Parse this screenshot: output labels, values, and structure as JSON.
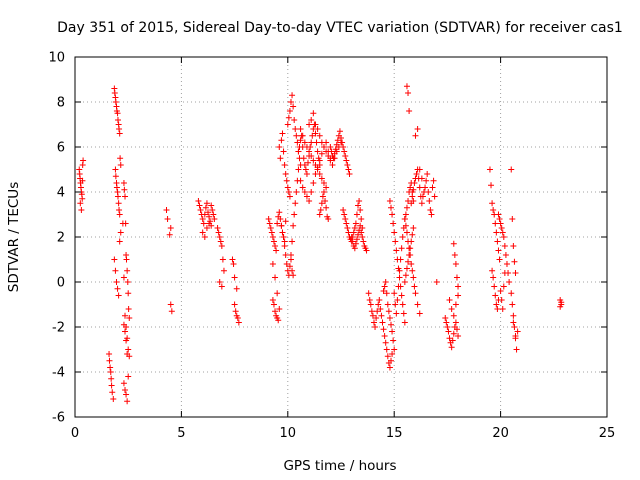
{
  "chart_data": {
    "type": "scatter",
    "title": "Day 351 of 2015, Sidereal Day-to-day VTEC variation (SDTVAR) for receiver cas1",
    "xlabel": "GPS time / hours",
    "ylabel": "SDTVAR / TECUs",
    "xlim": [
      0,
      25
    ],
    "ylim": [
      -6,
      10
    ],
    "xticks": [
      0,
      5,
      10,
      15,
      20,
      25
    ],
    "yticks": [
      -6,
      -4,
      -2,
      0,
      2,
      4,
      6,
      8,
      10
    ],
    "grid": true,
    "marker": "+",
    "color": "#ff0000",
    "series": [
      {
        "name": "SDTVAR",
        "x": [
          0.2,
          0.22,
          0.24,
          0.26,
          0.28,
          0.3,
          0.32,
          0.34,
          0.36,
          0.38,
          0.25,
          0.3,
          0.35,
          1.6,
          1.62,
          1.65,
          1.68,
          1.7,
          1.72,
          1.75,
          1.8,
          1.85,
          1.87,
          1.9,
          1.92,
          1.95,
          1.97,
          2.0,
          2.02,
          2.05,
          2.07,
          2.1,
          2.12,
          2.15,
          1.9,
          1.92,
          1.95,
          1.97,
          2.0,
          2.02,
          2.05,
          2.07,
          2.1,
          1.85,
          1.9,
          1.95,
          2.0,
          2.05,
          2.1,
          2.15,
          2.3,
          2.32,
          2.35,
          2.38,
          2.4,
          2.42,
          2.45,
          2.48,
          2.5,
          2.52,
          2.55,
          2.3,
          2.35,
          2.4,
          2.45,
          2.5,
          2.3,
          2.35,
          2.4,
          2.45,
          2.25,
          2.3,
          2.35,
          2.4,
          2.45,
          2.5,
          2.55,
          4.3,
          4.35,
          4.5,
          4.45,
          4.5,
          4.55,
          5.8,
          5.85,
          5.9,
          5.95,
          6.0,
          6.05,
          6.1,
          6.15,
          6.2,
          6.25,
          6.3,
          6.35,
          6.4,
          6.45,
          6.5,
          6.55,
          6.0,
          6.1,
          6.2,
          6.3,
          6.4,
          6.7,
          6.75,
          6.8,
          6.85,
          6.9,
          6.95,
          7.0,
          6.8,
          6.9,
          7.4,
          7.45,
          7.5,
          7.55,
          7.6,
          7.65,
          7.7,
          7.5,
          7.6,
          9.1,
          9.15,
          9.2,
          9.25,
          9.3,
          9.35,
          9.4,
          9.45,
          9.5,
          9.55,
          9.6,
          9.65,
          9.7,
          9.75,
          9.8,
          9.85,
          9.9,
          9.3,
          9.4,
          9.5,
          9.6,
          9.3,
          9.35,
          9.4,
          9.45,
          9.5,
          9.55,
          9.6,
          9.65,
          9.7,
          9.75,
          9.8,
          9.85,
          9.9,
          9.95,
          10.0,
          10.05,
          10.1,
          10.15,
          10.2,
          10.25,
          9.7,
          9.75,
          9.8,
          9.85,
          9.9,
          9.95,
          10.0,
          10.05,
          10.1,
          10.15,
          10.2,
          10.25,
          10.3,
          10.35,
          10.4,
          10.45,
          10.5,
          10.0,
          10.05,
          10.1,
          10.15,
          10.2,
          10.25,
          10.3,
          10.35,
          10.4,
          10.45,
          10.5,
          10.55,
          10.6,
          10.5,
          10.55,
          10.6,
          10.65,
          10.7,
          10.75,
          10.8,
          10.85,
          10.9,
          10.95,
          11.0,
          11.05,
          11.1,
          11.15,
          11.2,
          11.25,
          11.3,
          11.35,
          11.4,
          11.45,
          11.5,
          10.6,
          10.7,
          10.8,
          10.9,
          11.0,
          11.1,
          11.2,
          11.3,
          11.4,
          11.5,
          11.6,
          11.7,
          11.8,
          11.9,
          12.0,
          10.6,
          10.7,
          10.8,
          10.9,
          11.0,
          11.1,
          11.2,
          11.3,
          11.4,
          11.5,
          11.6,
          11.7,
          11.8,
          11.0,
          11.1,
          11.2,
          11.3,
          11.4,
          11.5,
          11.6,
          11.7,
          11.8,
          11.9,
          12.0,
          12.1,
          12.2,
          12.3,
          12.4,
          12.5,
          11.5,
          11.55,
          11.6,
          11.65,
          11.7,
          11.75,
          11.8,
          11.85,
          11.9,
          12.0,
          12.05,
          12.1,
          12.15,
          12.2,
          12.25,
          12.3,
          12.35,
          12.4,
          12.45,
          12.5,
          12.55,
          12.6,
          12.65,
          12.7,
          12.75,
          12.8,
          12.85,
          12.9,
          12.6,
          12.65,
          12.7,
          12.75,
          12.8,
          12.85,
          12.9,
          12.95,
          13.0,
          13.05,
          13.1,
          13.15,
          13.2,
          13.25,
          13.3,
          13.35,
          13.4,
          13.45,
          13.5,
          13.0,
          13.05,
          13.1,
          13.15,
          13.2,
          13.25,
          13.3,
          13.35,
          13.4,
          13.45,
          13.5,
          13.55,
          13.6,
          13.65,
          13.7,
          13.8,
          13.85,
          13.9,
          13.95,
          14.0,
          14.05,
          14.1,
          14.15,
          14.2,
          14.25,
          14.3,
          14.35,
          14.4,
          14.45,
          14.5,
          14.55,
          14.6,
          14.65,
          14.7,
          14.75,
          14.8,
          14.85,
          14.9,
          14.5,
          14.55,
          14.6,
          14.65,
          14.7,
          14.75,
          14.8,
          14.85,
          14.9,
          14.95,
          15.0,
          14.8,
          14.85,
          14.9,
          14.95,
          15.0,
          15.05,
          15.1,
          15.15,
          15.2,
          15.25,
          15.3,
          15.35,
          15.4,
          15.45,
          15.5,
          15.0,
          15.05,
          15.1,
          15.15,
          15.2,
          15.25,
          15.3,
          15.35,
          15.4,
          15.45,
          15.5,
          15.55,
          15.6,
          15.65,
          15.7,
          15.75,
          15.8,
          15.85,
          15.9,
          15.5,
          15.55,
          15.6,
          15.65,
          15.7,
          15.75,
          15.8,
          15.85,
          15.9,
          15.8,
          15.85,
          15.9,
          15.95,
          16.0,
          16.05,
          16.1,
          16.15,
          16.2,
          16.25,
          16.3,
          16.35,
          16.4,
          16.45,
          16.5,
          16.55,
          16.6,
          16.65,
          16.7,
          16.75,
          16.8,
          16.85,
          16.9,
          15.5,
          15.55,
          15.6,
          15.65,
          15.7,
          15.75,
          15.8,
          15.85,
          15.9,
          15.95,
          16.0,
          16.1,
          16.2,
          15.6,
          15.65,
          15.7,
          16.0,
          16.1,
          16.2,
          16.3,
          17.0,
          17.4,
          17.45,
          17.5,
          17.55,
          17.6,
          17.65,
          17.7,
          17.75,
          17.8,
          17.85,
          17.9,
          17.95,
          18.0,
          17.6,
          17.7,
          17.8,
          17.9,
          18.0,
          17.8,
          17.85,
          17.9,
          17.95,
          18.0,
          19.5,
          19.55,
          19.6,
          19.65,
          19.7,
          19.75,
          19.8,
          19.85,
          19.9,
          19.95,
          19.6,
          19.65,
          19.7,
          19.75,
          19.8,
          19.85,
          19.9,
          19.9,
          19.95,
          20.0,
          20.05,
          20.1,
          20.15,
          20.2,
          20.25,
          20.3,
          20.35,
          20.4,
          20.0,
          20.05,
          20.1,
          20.15,
          20.2,
          20.5,
          20.55,
          20.6,
          20.65,
          20.7,
          20.75,
          20.8,
          20.5,
          20.55,
          20.6,
          20.65,
          20.7,
          20.6,
          20.7,
          22.8,
          22.85,
          22.8,
          22.85
        ],
        "y": [
          5.0,
          4.8,
          4.6,
          4.4,
          4.2,
          4.0,
          3.9,
          3.7,
          5.2,
          5.4,
          3.5,
          3.2,
          4.5,
          -3.2,
          -3.5,
          -3.8,
          -4.0,
          -4.3,
          -4.6,
          -4.9,
          -5.2,
          8.6,
          8.4,
          8.2,
          8.0,
          7.8,
          7.6,
          7.5,
          7.2,
          7.0,
          6.8,
          6.6,
          5.5,
          5.2,
          5.0,
          4.7,
          4.4,
          4.2,
          4.0,
          3.8,
          3.5,
          3.2,
          3.0,
          1.0,
          0.5,
          0.0,
          -0.3,
          -0.6,
          1.8,
          2.2,
          4.4,
          4.1,
          3.8,
          2.6,
          1.2,
          1.0,
          0.5,
          0.0,
          -0.5,
          -1.2,
          -1.6,
          -1.9,
          -2.2,
          -2.6,
          -3.2,
          -4.2,
          -4.5,
          -4.8,
          -5.0,
          -5.3,
          2.6,
          0.2,
          -1.5,
          -2.0,
          -2.5,
          -3.0,
          -3.3,
          3.2,
          2.8,
          2.4,
          2.1,
          -1.0,
          -1.3,
          3.6,
          3.4,
          3.2,
          3.0,
          2.8,
          2.6,
          3.0,
          3.3,
          3.5,
          3.1,
          2.9,
          2.7,
          2.5,
          3.2,
          3.0,
          2.8,
          2.2,
          2.0,
          2.4,
          2.6,
          3.4,
          2.4,
          2.2,
          2.0,
          1.8,
          1.6,
          1.0,
          0.5,
          0.0,
          -0.2,
          1.0,
          0.8,
          -1.0,
          -1.3,
          -1.5,
          -1.6,
          -1.8,
          0.2,
          -0.3,
          2.8,
          2.6,
          2.4,
          2.2,
          2.0,
          1.8,
          1.6,
          1.4,
          2.6,
          2.9,
          3.1,
          2.8,
          2.5,
          2.2,
          2.0,
          1.8,
          2.7,
          0.8,
          0.2,
          -0.5,
          -1.2,
          -0.8,
          -1.0,
          -1.3,
          -1.5,
          -1.6,
          -1.7,
          6.0,
          5.5,
          6.3,
          6.6,
          5.8,
          5.2,
          4.8,
          4.5,
          4.2,
          4.0,
          3.8,
          1.0,
          0.5,
          0.3,
          2.5,
          2.2,
          2.0,
          1.6,
          1.2,
          0.8,
          0.5,
          0.3,
          0.7,
          1.2,
          1.8,
          2.5,
          3.0,
          3.5,
          4.0,
          4.5,
          5.0,
          7.0,
          7.3,
          7.6,
          8.0,
          8.3,
          7.8,
          7.2,
          6.8,
          6.5,
          6.2,
          5.8,
          5.5,
          5.2,
          5.8,
          6.0,
          6.3,
          6.5,
          6.0,
          5.5,
          5.2,
          5.0,
          4.8,
          5.3,
          5.6,
          6.0,
          6.2,
          6.5,
          6.8,
          7.0,
          6.6,
          6.2,
          5.8,
          5.5,
          5.2,
          4.5,
          4.2,
          4.0,
          3.8,
          3.6,
          4.0,
          4.4,
          4.8,
          5.1,
          5.4,
          5.7,
          6.0,
          6.2,
          5.8,
          5.5,
          6.8,
          6.5,
          6.2,
          6.0,
          5.8,
          5.6,
          5.4,
          5.2,
          5.0,
          4.8,
          4.6,
          4.4,
          4.2,
          7.0,
          7.2,
          7.5,
          7.0,
          6.8,
          6.5,
          6.2,
          6.0,
          5.8,
          5.6,
          5.4,
          5.2,
          5.5,
          5.8,
          6.0,
          6.2,
          3.0,
          3.2,
          3.5,
          3.8,
          4.0,
          3.6,
          3.3,
          2.9,
          2.8,
          6.0,
          5.8,
          5.6,
          5.5,
          5.7,
          5.9,
          6.1,
          6.3,
          6.5,
          6.7,
          6.4,
          6.2,
          6.0,
          5.8,
          5.6,
          5.4,
          5.2,
          5.0,
          4.8,
          3.2,
          3.0,
          2.8,
          2.6,
          2.4,
          2.2,
          2.0,
          1.9,
          1.8,
          2.0,
          2.2,
          2.4,
          2.6,
          3.0,
          3.4,
          3.6,
          3.2,
          2.8,
          2.4,
          2.0,
          1.8,
          1.6,
          1.5,
          1.7,
          1.9,
          2.1,
          2.3,
          2.5,
          2.2,
          2.0,
          1.8,
          1.6,
          1.5,
          1.4,
          -0.5,
          -0.8,
          -1.0,
          -1.3,
          -1.5,
          -1.8,
          -2.0,
          -1.6,
          -1.3,
          -1.0,
          -0.8,
          -1.2,
          -1.5,
          -1.8,
          -2.1,
          -2.4,
          -2.7,
          -3.0,
          -3.3,
          -3.6,
          -3.8,
          -3.5,
          -3.2,
          -0.4,
          -0.2,
          0.0,
          -0.5,
          -1.0,
          -1.3,
          -1.6,
          -1.9,
          -2.2,
          -2.6,
          -3.0,
          3.6,
          3.3,
          3.0,
          2.6,
          2.2,
          1.8,
          1.4,
          1.0,
          0.6,
          0.2,
          -0.2,
          -0.6,
          -1.0,
          -1.4,
          -1.8,
          -0.5,
          -1.0,
          -1.4,
          -0.8,
          -0.2,
          0.5,
          1.0,
          1.5,
          2.0,
          2.4,
          2.8,
          3.0,
          3.3,
          3.6,
          4.0,
          4.2,
          4.4,
          4.0,
          3.6,
          0.0,
          0.3,
          0.6,
          0.9,
          1.2,
          1.5,
          1.8,
          2.1,
          2.4,
          3.5,
          3.8,
          4.1,
          4.4,
          4.6,
          4.8,
          5.0,
          4.6,
          4.2,
          3.8,
          3.5,
          3.8,
          4.0,
          4.2,
          4.5,
          4.8,
          4.0,
          3.6,
          3.2,
          3.0,
          4.2,
          4.5,
          3.8,
          2.8,
          2.5,
          2.2,
          1.8,
          1.5,
          1.2,
          0.8,
          0.5,
          0.2,
          -0.2,
          -0.5,
          -1.0,
          -1.4,
          8.7,
          8.4,
          7.6,
          6.5,
          6.8,
          5.0,
          4.6,
          0.0,
          -1.6,
          -1.8,
          -2.0,
          -2.2,
          -2.5,
          -2.7,
          -2.9,
          -2.6,
          -2.3,
          -2.0,
          -1.8,
          -2.1,
          -2.4,
          -0.8,
          -1.2,
          -1.5,
          -1.0,
          -0.6,
          1.7,
          1.2,
          0.8,
          0.2,
          -0.2,
          5.0,
          4.3,
          3.5,
          3.2,
          3.0,
          2.6,
          2.2,
          1.8,
          1.4,
          1.0,
          0.5,
          0.2,
          -0.2,
          -0.6,
          -1.0,
          -1.2,
          -0.8,
          3.0,
          2.8,
          2.6,
          2.4,
          2.2,
          2.0,
          1.6,
          1.2,
          0.8,
          0.4,
          0.0,
          -0.4,
          -0.8,
          -1.2,
          -0.2,
          0.4,
          -0.5,
          -1.0,
          -1.5,
          -2.0,
          -2.5,
          -3.0,
          -2.2,
          5.0,
          2.8,
          1.6,
          0.9,
          0.4,
          -1.8,
          -2.4,
          -0.8,
          -1.0,
          -1.1,
          -0.9
        ]
      }
    ]
  }
}
